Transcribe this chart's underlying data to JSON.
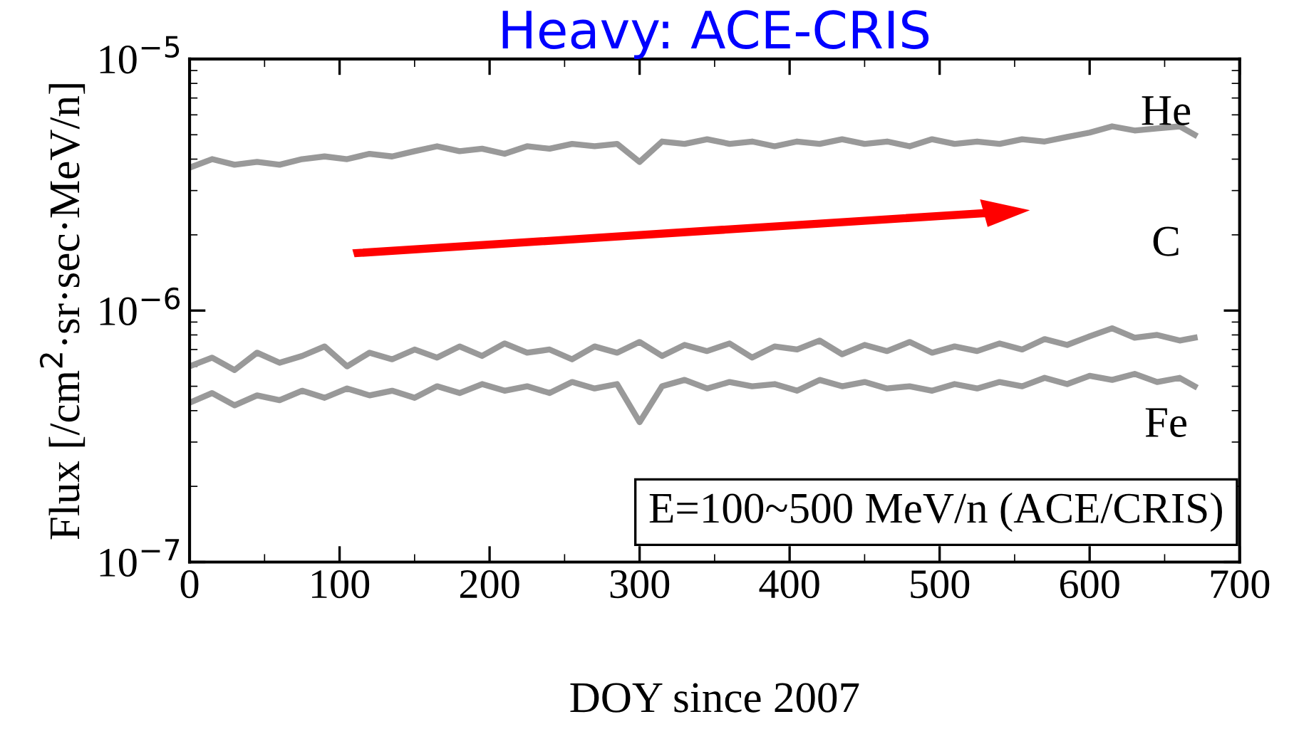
{
  "chart_data": {
    "type": "line",
    "title": "Heavy: ACE-CRIS",
    "xlabel": "DOY since 2007",
    "ylabel": "Flux [/cm$^{2}$·sr·sec·MeV/n]",
    "x": [
      0,
      15,
      30,
      45,
      60,
      75,
      90,
      105,
      120,
      135,
      150,
      165,
      180,
      195,
      210,
      225,
      240,
      255,
      270,
      285,
      300,
      315,
      330,
      345,
      360,
      375,
      390,
      405,
      420,
      435,
      450,
      465,
      480,
      495,
      510,
      525,
      540,
      555,
      570,
      585,
      600,
      615,
      630,
      645,
      660,
      670
    ],
    "series": [
      {
        "name": "He",
        "color": "#999999",
        "values": [
          3.7e-06,
          4e-06,
          3.8e-06,
          3.9e-06,
          3.8e-06,
          4e-06,
          4.1e-06,
          4e-06,
          4.2e-06,
          4.1e-06,
          4.3e-06,
          4.5e-06,
          4.3e-06,
          4.4e-06,
          4.2e-06,
          4.5e-06,
          4.4e-06,
          4.6e-06,
          4.5e-06,
          4.6e-06,
          3.9e-06,
          4.7e-06,
          4.6e-06,
          4.8e-06,
          4.6e-06,
          4.7e-06,
          4.5e-06,
          4.7e-06,
          4.6e-06,
          4.8e-06,
          4.6e-06,
          4.7e-06,
          4.5e-06,
          4.8e-06,
          4.6e-06,
          4.7e-06,
          4.6e-06,
          4.8e-06,
          4.7e-06,
          4.9e-06,
          5.1e-06,
          5.4e-06,
          5.2e-06,
          5.3e-06,
          5.4e-06,
          5e-06
        ]
      },
      {
        "name": "C",
        "color": "#999999",
        "values": [
          6e-07,
          6.5e-07,
          5.8e-07,
          6.8e-07,
          6.2e-07,
          6.6e-07,
          7.2e-07,
          6e-07,
          6.8e-07,
          6.4e-07,
          7e-07,
          6.5e-07,
          7.2e-07,
          6.6e-07,
          7.4e-07,
          6.8e-07,
          7e-07,
          6.4e-07,
          7.2e-07,
          6.8e-07,
          7.5e-07,
          6.6e-07,
          7.3e-07,
          6.9e-07,
          7.4e-07,
          6.5e-07,
          7.2e-07,
          7e-07,
          7.6e-07,
          6.7e-07,
          7.3e-07,
          6.9e-07,
          7.5e-07,
          6.8e-07,
          7.2e-07,
          6.9e-07,
          7.4e-07,
          7e-07,
          7.7e-07,
          7.3e-07,
          7.9e-07,
          8.5e-07,
          7.8e-07,
          8e-07,
          7.6e-07,
          7.8e-07
        ]
      },
      {
        "name": "Fe",
        "color": "#999999",
        "values": [
          4.3e-07,
          4.7e-07,
          4.2e-07,
          4.6e-07,
          4.4e-07,
          4.8e-07,
          4.5e-07,
          4.9e-07,
          4.6e-07,
          4.8e-07,
          4.5e-07,
          5e-07,
          4.7e-07,
          5.1e-07,
          4.8e-07,
          5e-07,
          4.7e-07,
          5.2e-07,
          4.9e-07,
          5.1e-07,
          3.6e-07,
          5e-07,
          5.3e-07,
          4.9e-07,
          5.2e-07,
          5e-07,
          5.1e-07,
          4.8e-07,
          5.3e-07,
          5e-07,
          5.2e-07,
          4.9e-07,
          5e-07,
          4.8e-07,
          5.1e-07,
          4.9e-07,
          5.2e-07,
          5e-07,
          5.4e-07,
          5.1e-07,
          5.5e-07,
          5.3e-07,
          5.6e-07,
          5.2e-07,
          5.4e-07,
          5e-07
        ]
      }
    ],
    "annotations": [
      "E=100~500 MeV/n (ACE/CRIS)"
    ],
    "log": "y",
    "xlim": [
      0,
      700
    ],
    "xticks": [
      0,
      100,
      200,
      300,
      400,
      500,
      600,
      700
    ],
    "ylim": [
      1e-07,
      1e-05
    ],
    "yticks": [
      {
        "value": 1e-07,
        "label": "10$^{−7}$"
      },
      {
        "value": 1e-06,
        "label": "10$^{−6}$"
      },
      {
        "value": 1e-05,
        "label": "10$^{−5}$"
      }
    ],
    "grid": false,
    "legend": false,
    "marker": "none",
    "line_style": "solid"
  }
}
